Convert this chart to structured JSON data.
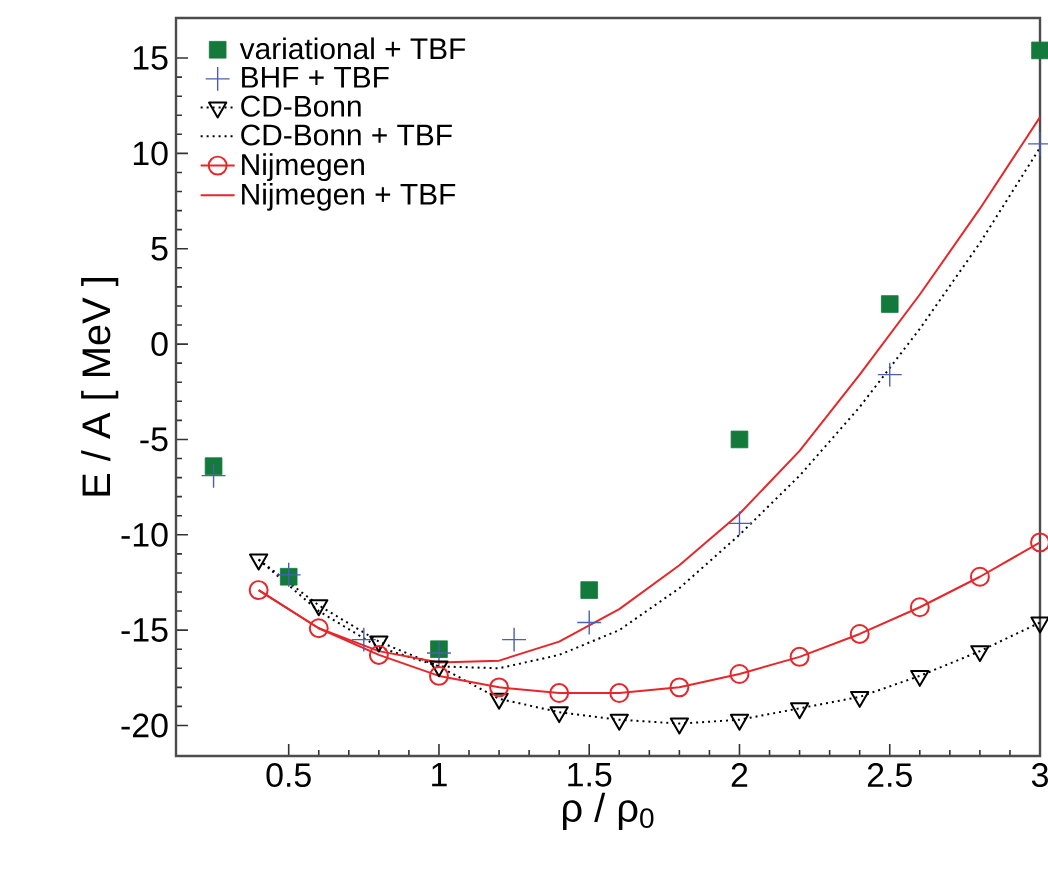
{
  "chart_data": {
    "type": "line",
    "xlabel": "ρ / ρ$_{0}$",
    "ylabel": "E / A  [ MeV ]",
    "xlim": [
      0.125,
      3.0
    ],
    "ylim": [
      -21.6,
      17.1
    ],
    "xticks": [
      0.5,
      1,
      1.5,
      2,
      2.5,
      3
    ],
    "yticks": [
      -20,
      -15,
      -10,
      -5,
      0,
      5,
      10,
      15
    ],
    "legend": "top left",
    "grid": false,
    "series": [
      {
        "name": "variational + TBF",
        "type": "scatter",
        "marker": "square",
        "color": "#137a3c",
        "x": [
          0.25,
          0.5,
          1,
          1.5,
          2,
          2.5,
          3
        ],
        "values": [
          -6.4,
          -12.2,
          -16.0,
          -12.9,
          -5.0,
          2.1,
          15.4
        ]
      },
      {
        "name": "BHF + TBF",
        "type": "scatter",
        "marker": "cross",
        "color": "#4a5fb0",
        "x": [
          0.25,
          0.5,
          0.75,
          1,
          1.25,
          1.5,
          2,
          2.5,
          3
        ],
        "values": [
          -6.9,
          -12.1,
          -15.5,
          -16.2,
          -15.5,
          -14.6,
          -9.4,
          -1.6,
          10.5
        ]
      },
      {
        "name": "CD-Bonn",
        "marker": "triangle",
        "line_style": "dotted",
        "color": "#000000",
        "x": [
          0.4,
          0.6,
          0.8,
          1.0,
          1.2,
          1.4,
          1.6,
          1.8,
          2.0,
          2.2,
          2.4,
          2.6,
          2.8,
          3.0
        ],
        "values": [
          -11.3,
          -13.7,
          -15.6,
          -16.9,
          -18.6,
          -19.3,
          -19.7,
          -19.9,
          -19.7,
          -19.1,
          -18.5,
          -17.4,
          -16.1,
          -14.6
        ]
      },
      {
        "name": "CD-Bonn + TBF",
        "marker": "none",
        "line_style": "dotted",
        "color": "#000000",
        "x": [
          0.4,
          0.6,
          0.8,
          1.0,
          1.2,
          1.4,
          1.6,
          1.8,
          2.0,
          2.2,
          2.4,
          2.6,
          2.8,
          3.0
        ],
        "values": [
          -11.3,
          -14.0,
          -15.9,
          -16.9,
          -17.0,
          -16.3,
          -15.0,
          -12.8,
          -10.0,
          -6.9,
          -3.3,
          0.8,
          5.3,
          10.3
        ]
      },
      {
        "name": "Nijmegen",
        "marker": "circle",
        "line_style": "solid",
        "color": "#e8262a",
        "x": [
          0.4,
          0.6,
          0.8,
          1.0,
          1.2,
          1.4,
          1.6,
          1.8,
          2.0,
          2.2,
          2.4,
          2.6,
          2.8,
          3.0
        ],
        "values": [
          -12.9,
          -14.9,
          -16.3,
          -17.4,
          -18.0,
          -18.3,
          -18.3,
          -18.0,
          -17.3,
          -16.4,
          -15.2,
          -13.8,
          -12.2,
          -10.4
        ]
      },
      {
        "name": "Nijmegen + TBF",
        "marker": "none",
        "line_style": "solid",
        "color": "#e8262a",
        "x": [
          0.4,
          0.6,
          0.8,
          1.0,
          1.2,
          1.4,
          1.6,
          1.8,
          2.0,
          2.2,
          2.4,
          2.6,
          2.8,
          3.0
        ],
        "values": [
          -12.9,
          -14.9,
          -16.1,
          -16.7,
          -16.6,
          -15.6,
          -13.9,
          -11.6,
          -8.9,
          -5.6,
          -1.6,
          2.6,
          7.1,
          11.9
        ]
      }
    ]
  }
}
